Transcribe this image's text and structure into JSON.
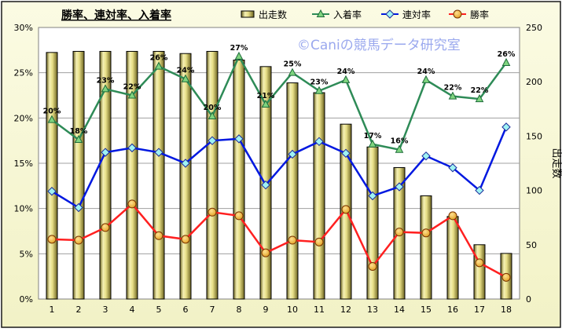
{
  "chart_data": {
    "type": "bar",
    "title": "勝率、連対率、入着率",
    "watermark": "©Caniの競馬データ研究室",
    "categories": [
      "1",
      "2",
      "3",
      "4",
      "5",
      "6",
      "7",
      "8",
      "9",
      "10",
      "11",
      "12",
      "13",
      "14",
      "15",
      "16",
      "17",
      "18"
    ],
    "y_left": {
      "min": 0,
      "max": 30,
      "ticks": [
        "0%",
        "5%",
        "10%",
        "15%",
        "20%",
        "25%",
        "30%"
      ]
    },
    "y_right": {
      "label": "出走数",
      "min": 0,
      "max": 250,
      "ticks": [
        "0",
        "50",
        "100",
        "150",
        "200",
        "250"
      ]
    },
    "grid": true,
    "legend_position": "top",
    "bars": {
      "name": "出走数",
      "color": "#e8e08a",
      "values": [
        227,
        228,
        228,
        228,
        228,
        226,
        228,
        220,
        214,
        199,
        190,
        161,
        140,
        121,
        95,
        76,
        50,
        42
      ]
    },
    "series": [
      {
        "name": "入着率",
        "color": "#2e8b57",
        "marker": "triangle",
        "values": [
          19.8,
          17.6,
          23.2,
          22.5,
          25.7,
          24.3,
          20.2,
          26.8,
          21.5,
          25.0,
          23.0,
          24.2,
          17.1,
          16.5,
          24.2,
          22.4,
          22.1,
          26.1
        ],
        "labels": [
          "20%",
          "18%",
          "23%",
          "22%",
          "26%",
          "24%",
          "20%",
          "27%",
          "21%",
          "25%",
          "23%",
          "24%",
          "17%",
          "16%",
          "24%",
          "22%",
          "22%",
          "26%"
        ]
      },
      {
        "name": "連対率",
        "color": "#0018e0",
        "marker": "diamond",
        "values": [
          11.9,
          10.1,
          16.2,
          16.7,
          16.2,
          15.0,
          17.5,
          17.7,
          12.6,
          16.0,
          17.4,
          16.1,
          11.4,
          12.4,
          15.8,
          14.5,
          12.0,
          19.0
        ]
      },
      {
        "name": "勝率",
        "color": "#ff2020",
        "marker": "circle",
        "values": [
          6.6,
          6.5,
          7.9,
          10.5,
          7.0,
          6.6,
          9.6,
          9.2,
          5.1,
          6.5,
          6.3,
          9.9,
          3.6,
          7.4,
          7.3,
          9.2,
          4.0,
          2.4
        ]
      }
    ]
  }
}
